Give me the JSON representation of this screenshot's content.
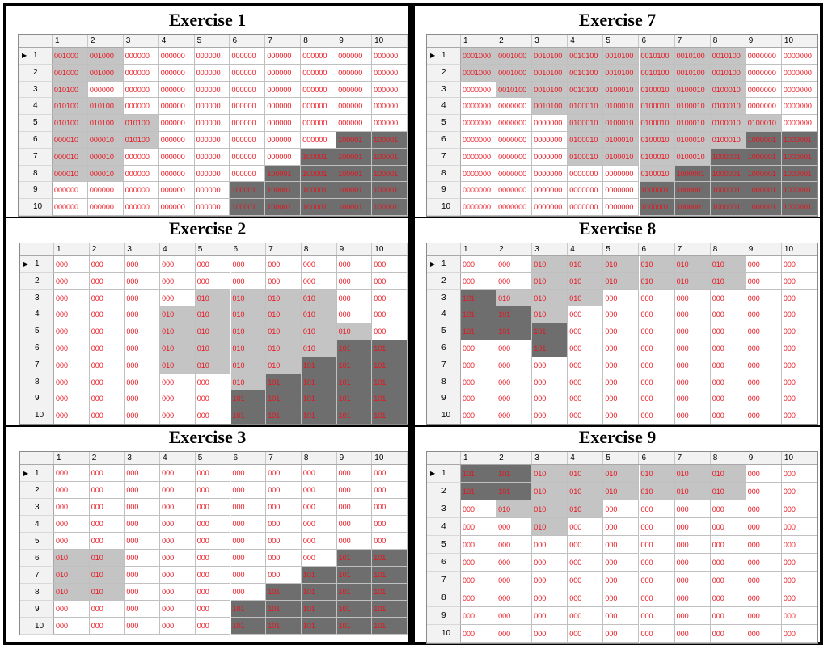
{
  "columns": [
    "1",
    "2",
    "3",
    "4",
    "5",
    "6",
    "7",
    "8",
    "9",
    "10"
  ],
  "rows": [
    "1",
    "2",
    "3",
    "4",
    "5",
    "6",
    "7",
    "8",
    "9",
    "10"
  ],
  "exercises": [
    {
      "title": "Exercise 1",
      "has_arrow": true,
      "cells": [
        [
          "001000",
          "001000",
          "000000",
          "000000",
          "000000",
          "000000",
          "000000",
          "000000",
          "000000",
          "000000"
        ],
        [
          "001000",
          "001000",
          "000000",
          "000000",
          "000000",
          "000000",
          "000000",
          "000000",
          "000000",
          "000000"
        ],
        [
          "010100",
          "000000",
          "000000",
          "000000",
          "000000",
          "000000",
          "000000",
          "000000",
          "000000",
          "000000"
        ],
        [
          "010100",
          "010100",
          "000000",
          "000000",
          "000000",
          "000000",
          "000000",
          "000000",
          "000000",
          "000000"
        ],
        [
          "010100",
          "010100",
          "010100",
          "000000",
          "000000",
          "000000",
          "000000",
          "000000",
          "000000",
          "000000"
        ],
        [
          "000010",
          "000010",
          "010100",
          "000000",
          "000000",
          "000000",
          "000000",
          "000000",
          "100001",
          "100001"
        ],
        [
          "000010",
          "000010",
          "000000",
          "000000",
          "000000",
          "000000",
          "000000",
          "100001",
          "100001",
          "100001"
        ],
        [
          "000010",
          "000010",
          "000000",
          "000000",
          "000000",
          "000000",
          "100001",
          "100001",
          "100001",
          "100001"
        ],
        [
          "000000",
          "000000",
          "000000",
          "000000",
          "000000",
          "100001",
          "100001",
          "100001",
          "100001",
          "100001"
        ],
        [
          "000000",
          "000000",
          "000000",
          "000000",
          "000000",
          "100001",
          "100001",
          "100001",
          "100001",
          "100001"
        ]
      ]
    },
    {
      "title": "Exercise 7",
      "has_arrow": true,
      "cells": [
        [
          "0001000",
          "0001000",
          "0010100",
          "0010100",
          "0010100",
          "0010100",
          "0010100",
          "0010100",
          "0000000",
          "0000000"
        ],
        [
          "0001000",
          "0001000",
          "0010100",
          "0010100",
          "0010100",
          "0010100",
          "0010100",
          "0010100",
          "0000000",
          "0000000"
        ],
        [
          "0000000",
          "0010100",
          "0010100",
          "0010100",
          "0100010",
          "0100010",
          "0100010",
          "0100010",
          "0000000",
          "0000000"
        ],
        [
          "0000000",
          "0000000",
          "0010100",
          "0100010",
          "0100010",
          "0100010",
          "0100010",
          "0100010",
          "0000000",
          "0000000"
        ],
        [
          "0000000",
          "0000000",
          "0000000",
          "0100010",
          "0100010",
          "0100010",
          "0100010",
          "0100010",
          "0100010",
          "0000000"
        ],
        [
          "0000000",
          "0000000",
          "0000000",
          "0100010",
          "0100010",
          "0100010",
          "0100010",
          "0100010",
          "1000001",
          "1000001"
        ],
        [
          "0000000",
          "0000000",
          "0000000",
          "0100010",
          "0100010",
          "0100010",
          "0100010",
          "1000001",
          "1000001",
          "1000001"
        ],
        [
          "0000000",
          "0000000",
          "0000000",
          "0000000",
          "0000000",
          "0100010",
          "1000001",
          "1000001",
          "1000001",
          "1000001"
        ],
        [
          "0000000",
          "0000000",
          "0000000",
          "0000000",
          "0000000",
          "1000001",
          "1000001",
          "1000001",
          "1000001",
          "1000001"
        ],
        [
          "0000000",
          "0000000",
          "0000000",
          "0000000",
          "0000000",
          "1000001",
          "1000001",
          "1000001",
          "1000001",
          "1000001"
        ]
      ]
    },
    {
      "title": "Exercise 2",
      "has_arrow": true,
      "cells": [
        [
          "000",
          "000",
          "000",
          "000",
          "000",
          "000",
          "000",
          "000",
          "000",
          "000"
        ],
        [
          "000",
          "000",
          "000",
          "000",
          "000",
          "000",
          "000",
          "000",
          "000",
          "000"
        ],
        [
          "000",
          "000",
          "000",
          "000",
          "010",
          "010",
          "010",
          "010",
          "000",
          "000"
        ],
        [
          "000",
          "000",
          "000",
          "010",
          "010",
          "010",
          "010",
          "010",
          "000",
          "000"
        ],
        [
          "000",
          "000",
          "000",
          "010",
          "010",
          "010",
          "010",
          "010",
          "010",
          "000"
        ],
        [
          "000",
          "000",
          "000",
          "010",
          "010",
          "010",
          "010",
          "010",
          "101",
          "101"
        ],
        [
          "000",
          "000",
          "000",
          "010",
          "010",
          "010",
          "010",
          "101",
          "101",
          "101"
        ],
        [
          "000",
          "000",
          "000",
          "000",
          "000",
          "010",
          "101",
          "101",
          "101",
          "101"
        ],
        [
          "000",
          "000",
          "000",
          "000",
          "000",
          "101",
          "101",
          "101",
          "101",
          "101"
        ],
        [
          "000",
          "000",
          "000",
          "000",
          "000",
          "101",
          "101",
          "101",
          "101",
          "101"
        ]
      ]
    },
    {
      "title": "Exercise 8",
      "has_arrow": true,
      "cells": [
        [
          "000",
          "000",
          "010",
          "010",
          "010",
          "010",
          "010",
          "010",
          "000",
          "000"
        ],
        [
          "000",
          "000",
          "010",
          "010",
          "010",
          "010",
          "010",
          "010",
          "000",
          "000"
        ],
        [
          "101",
          "010",
          "010",
          "010",
          "000",
          "000",
          "000",
          "000",
          "000",
          "000"
        ],
        [
          "101",
          "101",
          "010",
          "000",
          "000",
          "000",
          "000",
          "000",
          "000",
          "000"
        ],
        [
          "101",
          "101",
          "101",
          "000",
          "000",
          "000",
          "000",
          "000",
          "000",
          "000"
        ],
        [
          "000",
          "000",
          "101",
          "000",
          "000",
          "000",
          "000",
          "000",
          "000",
          "000"
        ],
        [
          "000",
          "000",
          "000",
          "000",
          "000",
          "000",
          "000",
          "000",
          "000",
          "000"
        ],
        [
          "000",
          "000",
          "000",
          "000",
          "000",
          "000",
          "000",
          "000",
          "000",
          "000"
        ],
        [
          "000",
          "000",
          "000",
          "000",
          "000",
          "000",
          "000",
          "000",
          "000",
          "000"
        ],
        [
          "000",
          "000",
          "000",
          "000",
          "000",
          "000",
          "000",
          "000",
          "000",
          "000"
        ]
      ]
    },
    {
      "title": "Exercise 3",
      "has_arrow": true,
      "cells": [
        [
          "000",
          "000",
          "000",
          "000",
          "000",
          "000",
          "000",
          "000",
          "000",
          "000"
        ],
        [
          "000",
          "000",
          "000",
          "000",
          "000",
          "000",
          "000",
          "000",
          "000",
          "000"
        ],
        [
          "000",
          "000",
          "000",
          "000",
          "000",
          "000",
          "000",
          "000",
          "000",
          "000"
        ],
        [
          "000",
          "000",
          "000",
          "000",
          "000",
          "000",
          "000",
          "000",
          "000",
          "000"
        ],
        [
          "000",
          "000",
          "000",
          "000",
          "000",
          "000",
          "000",
          "000",
          "000",
          "000"
        ],
        [
          "010",
          "010",
          "000",
          "000",
          "000",
          "000",
          "000",
          "000",
          "101",
          "101"
        ],
        [
          "010",
          "010",
          "000",
          "000",
          "000",
          "000",
          "000",
          "101",
          "101",
          "101"
        ],
        [
          "010",
          "010",
          "000",
          "000",
          "000",
          "000",
          "101",
          "101",
          "101",
          "101"
        ],
        [
          "000",
          "000",
          "000",
          "000",
          "000",
          "101",
          "101",
          "101",
          "101",
          "101"
        ],
        [
          "000",
          "000",
          "000",
          "000",
          "000",
          "101",
          "101",
          "101",
          "101",
          "101"
        ]
      ]
    },
    {
      "title": "Exercise 9",
      "has_arrow": true,
      "cells": [
        [
          "101",
          "101",
          "010",
          "010",
          "010",
          "010",
          "010",
          "010",
          "000",
          "000"
        ],
        [
          "101",
          "101",
          "010",
          "010",
          "010",
          "010",
          "010",
          "010",
          "000",
          "000"
        ],
        [
          "000",
          "010",
          "010",
          "010",
          "000",
          "000",
          "000",
          "000",
          "000",
          "000"
        ],
        [
          "000",
          "000",
          "010",
          "000",
          "000",
          "000",
          "000",
          "000",
          "000",
          "000"
        ],
        [
          "000",
          "000",
          "000",
          "000",
          "000",
          "000",
          "000",
          "000",
          "000",
          "000"
        ],
        [
          "000",
          "000",
          "000",
          "000",
          "000",
          "000",
          "000",
          "000",
          "000",
          "000"
        ],
        [
          "000",
          "000",
          "000",
          "000",
          "000",
          "000",
          "000",
          "000",
          "000",
          "000"
        ],
        [
          "000",
          "000",
          "000",
          "000",
          "000",
          "000",
          "000",
          "000",
          "000",
          "000"
        ],
        [
          "000",
          "000",
          "000",
          "000",
          "000",
          "000",
          "000",
          "000",
          "000",
          "000"
        ],
        [
          "000",
          "000",
          "000",
          "000",
          "000",
          "000",
          "000",
          "000",
          "000",
          "000"
        ]
      ]
    }
  ],
  "shade_colors": {
    "plain": "#ffffff",
    "light": "#c4c4c4",
    "dark": "#6e6e6e",
    "text": "#e8141e"
  }
}
